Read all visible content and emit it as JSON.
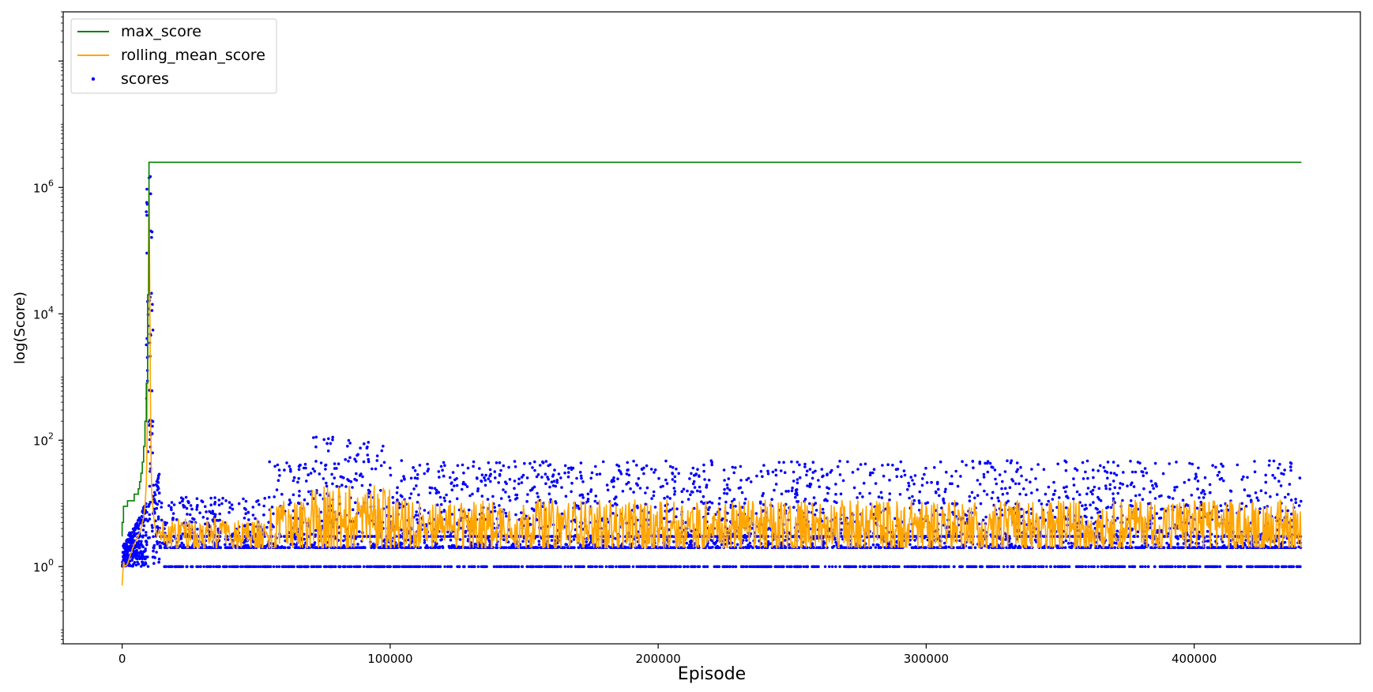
{
  "chart_data": {
    "type": "line",
    "title": "",
    "xlabel": "Episode",
    "ylabel": "log(Score)",
    "xscale": "linear",
    "yscale": "log",
    "xlim": [
      -22000,
      462000
    ],
    "ylim": [
      0.06,
      600000000
    ],
    "grid": false,
    "legend_position": "top-left",
    "x_ticks": [
      {
        "value": 0,
        "label": "0"
      },
      {
        "value": 100000,
        "label": "100000"
      },
      {
        "value": 200000,
        "label": "200000"
      },
      {
        "value": 300000,
        "label": "300000"
      },
      {
        "value": 400000,
        "label": "400000"
      }
    ],
    "y_ticks": [
      {
        "value": 1,
        "base": "10",
        "exp": "0"
      },
      {
        "value": 100,
        "base": "10",
        "exp": "2"
      },
      {
        "value": 10000,
        "base": "10",
        "exp": "4"
      },
      {
        "value": 1000000,
        "base": "10",
        "exp": "6"
      }
    ],
    "series": [
      {
        "name": "max_score",
        "kind": "line",
        "color": "#008000",
        "x": [
          0,
          0,
          500,
          500,
          1000,
          1000,
          2000,
          2000,
          3000,
          3000,
          4500,
          4500,
          6000,
          6000,
          6500,
          6500,
          7000,
          7000,
          7500,
          7500,
          8000,
          8000,
          8500,
          8500,
          9000,
          9000,
          9500,
          9500,
          10000,
          10000,
          440000
        ],
        "y": [
          3,
          5,
          5,
          9,
          9,
          9,
          9,
          11,
          11,
          11,
          11,
          14,
          14,
          17,
          17,
          22,
          22,
          30,
          30,
          45,
          45,
          80,
          80,
          200,
          200,
          800,
          800,
          20000,
          20000,
          2500000,
          2500000
        ]
      },
      {
        "name": "rolling_mean_score",
        "kind": "line",
        "color": "#FFA500",
        "x": [
          0,
          500,
          1000,
          2000,
          3000,
          4000,
          5000,
          6000,
          7000,
          8000,
          8500,
          9000,
          9300,
          9600,
          9800,
          10000,
          10200,
          10400,
          10600,
          10800,
          11000,
          11500,
          12000,
          13000,
          14000
        ],
        "y": [
          0.5,
          1.2,
          1.0,
          1.1,
          1.5,
          2,
          2.5,
          3,
          4,
          6,
          9,
          20,
          100,
          3000,
          100000,
          1000000,
          100000,
          5000,
          300,
          50,
          15,
          8,
          5,
          3,
          4
        ]
      },
      {
        "name": "scores",
        "kind": "scatter",
        "color": "#0000FF"
      }
    ]
  },
  "legend": {
    "entries": [
      {
        "label": "max_score",
        "color": "#008000",
        "marker": "line"
      },
      {
        "label": "rolling_mean_score",
        "color": "#FFA500",
        "marker": "line"
      },
      {
        "label": "scores",
        "color": "#0000FF",
        "marker": "dot"
      }
    ]
  }
}
